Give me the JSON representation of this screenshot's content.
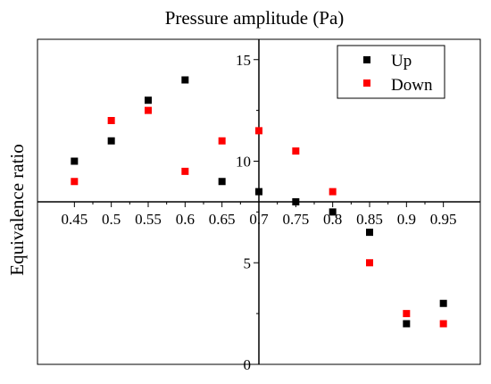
{
  "chart_data": {
    "type": "scatter",
    "title": "Pressure amplitude (Pa)",
    "ylabel": "Equivalence ratio",
    "xlabel": "",
    "x_ticks": [
      "0.45",
      "0.5",
      "0.55",
      "0.6",
      "0.65",
      "0.7",
      "0.75",
      "0.8",
      "0.85",
      "0.9",
      "0.95"
    ],
    "y_ticks": [
      "0",
      "5",
      "10",
      "15"
    ],
    "xlim": [
      0.4,
      1.0
    ],
    "ylim": [
      0,
      16
    ],
    "x_axis_crosses_y_at": 8,
    "y_axis_crosses_x_at": 0.7,
    "grid": false,
    "legend_position": "top-right",
    "series": [
      {
        "name": "Up",
        "color": "#000000",
        "marker": "square",
        "x": [
          0.45,
          0.5,
          0.55,
          0.6,
          0.65,
          0.7,
          0.75,
          0.8,
          0.85,
          0.9,
          0.95
        ],
        "y": [
          10,
          11,
          13,
          14,
          9,
          8.5,
          8,
          7.5,
          6.5,
          2,
          3
        ]
      },
      {
        "name": "Down",
        "color": "#ff0000",
        "marker": "square",
        "x": [
          0.45,
          0.5,
          0.55,
          0.6,
          0.65,
          0.7,
          0.75,
          0.8,
          0.85,
          0.9,
          0.95
        ],
        "y": [
          9,
          12,
          12.5,
          9.5,
          11,
          11.5,
          10.5,
          8.5,
          5,
          2.5,
          2
        ]
      }
    ]
  }
}
